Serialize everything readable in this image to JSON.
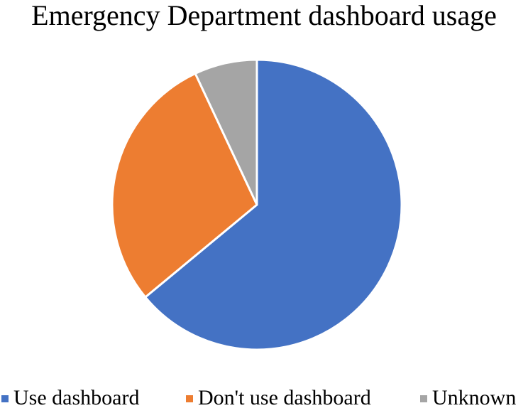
{
  "chart_data": {
    "type": "pie",
    "title": "Emergency Department dashboard usage",
    "categories": [
      "Use dashboard",
      "Don't use dashboard",
      "Unknown"
    ],
    "values": [
      64,
      29,
      7
    ],
    "colors": [
      "#4472C4",
      "#ED7D31",
      "#A5A5A5"
    ],
    "legend_position": "bottom",
    "start_angle_deg": 0,
    "direction": "clockwise"
  }
}
